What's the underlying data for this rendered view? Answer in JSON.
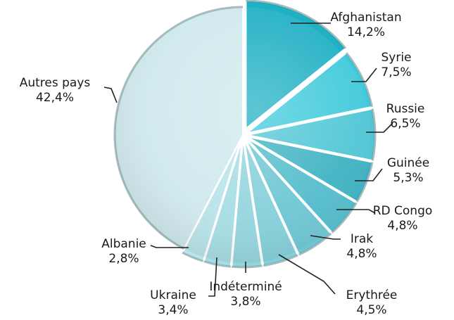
{
  "chart_data": {
    "type": "pie",
    "title": "",
    "start_angle_deg": 0,
    "direction": "clockwise",
    "legend": "none",
    "slices": [
      {
        "label": "Afghanistan",
        "value_label": "14,2%",
        "value": 14.2,
        "color": "#1fb0c4"
      },
      {
        "label": "Syrie",
        "value_label": "7,5%",
        "value": 7.5,
        "color": "#3fcadb"
      },
      {
        "label": "Russie",
        "value_label": "6,5%",
        "value": 6.5,
        "color": "#4fc6d5"
      },
      {
        "label": "Guinée",
        "value_label": "5,3%",
        "value": 5.3,
        "color": "#3eb2c2"
      },
      {
        "label": "RD Congo",
        "value_label": "4,8%",
        "value": 4.8,
        "color": "#53bccb"
      },
      {
        "label": "Irak",
        "value_label": "4,8%",
        "value": 4.8,
        "color": "#6cc6d3"
      },
      {
        "label": "Erythrée",
        "value_label": "4,5%",
        "value": 4.5,
        "color": "#84cfd9"
      },
      {
        "label": "Indéterminé",
        "value_label": "3,8%",
        "value": 3.8,
        "color": "#94d5de"
      },
      {
        "label": "Ukraine",
        "value_label": "3,4%",
        "value": 3.4,
        "color": "#a6dde4"
      },
      {
        "label": "Albanie",
        "value_label": "2,8%",
        "value": 2.8,
        "color": "#b8e4ea"
      },
      {
        "label": "Autres pays",
        "value_label": "42,4%",
        "value": 42.4,
        "color": "#cfe9ed"
      }
    ]
  }
}
